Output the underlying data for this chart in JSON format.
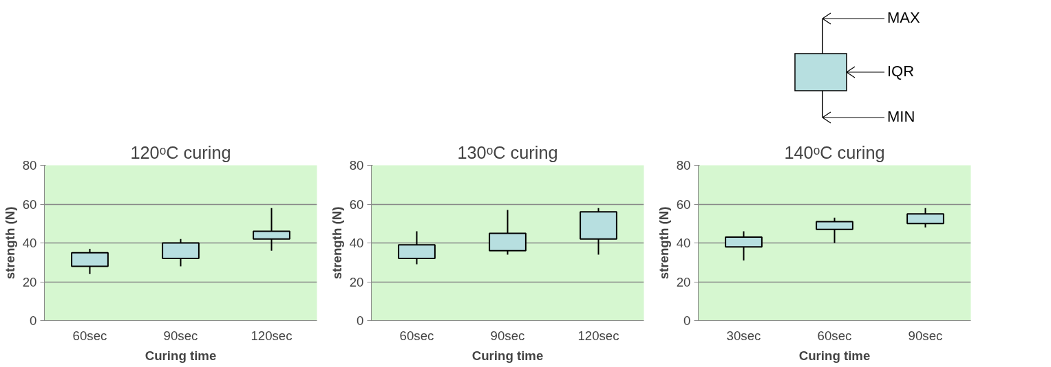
{
  "chart_data": [
    {
      "type": "other",
      "annotations": [
        "MAX",
        "IQR",
        "MIN"
      ]
    },
    {
      "type": "box",
      "title": "120ᵒC curing",
      "xlabel": "Curing time",
      "ylabel": "strength (N)",
      "categories": [
        "60sec",
        "90sec",
        "120sec"
      ],
      "ylim": [
        0,
        80
      ],
      "yticks": [
        0,
        20,
        40,
        60,
        80
      ],
      "grid": "y",
      "color": "#b7dfe0",
      "boxes": [
        {
          "low": 24,
          "q1": 28,
          "q3": 35,
          "high": 37
        },
        {
          "low": 28,
          "q1": 32,
          "q3": 40,
          "high": 42
        },
        {
          "low": 36,
          "q1": 42,
          "q3": 46,
          "high": 58
        }
      ]
    },
    {
      "type": "box",
      "title": "130ᵒC curing",
      "xlabel": "Curing time",
      "ylabel": "strength (N)",
      "categories": [
        "60sec",
        "90sec",
        "120sec"
      ],
      "ylim": [
        0,
        80
      ],
      "yticks": [
        0,
        20,
        40,
        60,
        80
      ],
      "grid": "y",
      "color": "#b7dfe0",
      "boxes": [
        {
          "low": 29,
          "q1": 32,
          "q3": 39,
          "high": 46
        },
        {
          "low": 34,
          "q1": 36,
          "q3": 45,
          "high": 57
        },
        {
          "low": 34,
          "q1": 42,
          "q3": 56,
          "high": 58
        }
      ]
    },
    {
      "type": "box",
      "title": "140ᵒC curing",
      "xlabel": "Curing time",
      "ylabel": "strength (N)",
      "categories": [
        "30sec",
        "60sec",
        "90sec"
      ],
      "ylim": [
        0,
        80
      ],
      "yticks": [
        0,
        20,
        40,
        60,
        80
      ],
      "grid": "y",
      "color": "#b7dfe0",
      "boxes": [
        {
          "low": 31,
          "q1": 38,
          "q3": 43,
          "high": 46
        },
        {
          "low": 40,
          "q1": 47,
          "q3": 51,
          "high": 53
        },
        {
          "low": 48,
          "q1": 50,
          "q3": 55,
          "high": 58
        }
      ]
    }
  ]
}
